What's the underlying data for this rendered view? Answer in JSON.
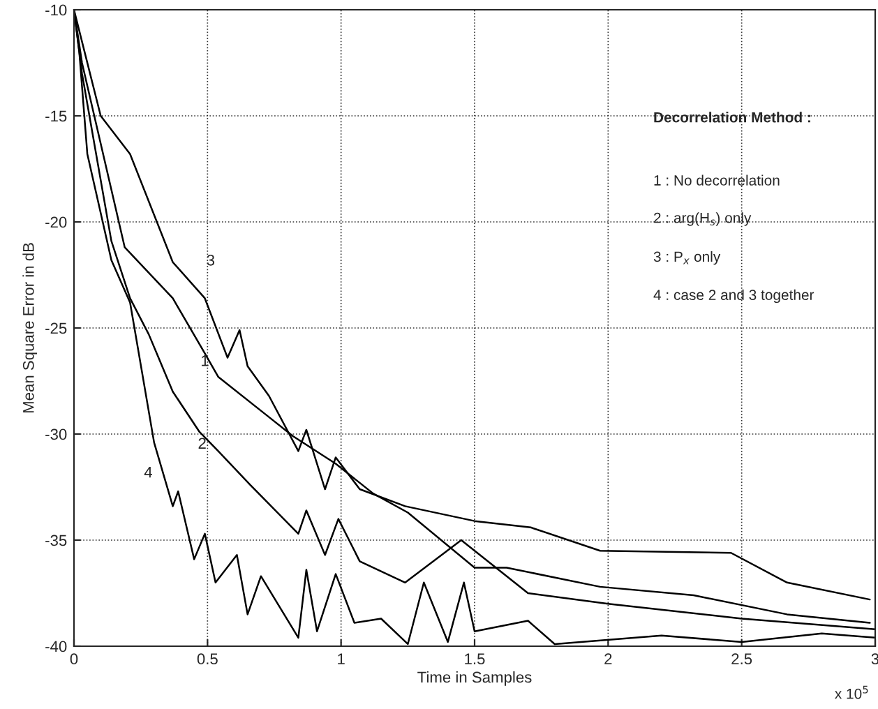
{
  "chart_data": {
    "type": "line",
    "xlabel": "Time in Samples",
    "ylabel": "Mean Square Error in dB",
    "xlim": [
      0,
      3
    ],
    "ylim": [
      -40,
      -10
    ],
    "xticks": [
      0,
      0.5,
      1,
      1.5,
      2,
      2.5,
      3
    ],
    "yticks": [
      -40,
      -35,
      -30,
      -25,
      -20,
      -15,
      -10
    ],
    "grid": true,
    "line_style": "solid",
    "marker": "none",
    "series": [
      {
        "color": "#000000",
        "x": [
          0,
          0.03,
          0.1,
          0.21,
          0.37,
          0.49,
          0.575,
          0.62,
          0.65,
          0.73,
          0.84,
          0.87,
          0.94,
          0.98,
          1.07,
          1.24,
          1.5,
          1.71,
          1.97,
          2.46,
          2.67,
          2.98
        ],
        "values": [
          -10,
          -11.5,
          -15,
          -16.8,
          -21.9,
          -23.6,
          -26.4,
          -25.1,
          -26.8,
          -28.2,
          -30.8,
          -29.8,
          -32.6,
          -31.1,
          -32.6,
          -33.4,
          -34.1,
          -34.4,
          -35.5,
          -35.6,
          -37,
          -37.8
        ]
      },
      {
        "color": "#000000",
        "x": [
          0,
          0.03,
          0.19,
          0.37,
          0.49,
          0.54,
          0.72,
          0.82,
          0.98,
          1.12,
          1.25,
          1.5,
          1.62,
          1.97,
          2.32,
          2.67,
          2.98
        ],
        "values": [
          -10,
          -12.5,
          -21.2,
          -23.6,
          -26.2,
          -27.3,
          -29.1,
          -30.1,
          -31.4,
          -32.8,
          -33.7,
          -36.3,
          -36.3,
          -37.2,
          -37.6,
          -38.5,
          -38.9
        ]
      },
      {
        "color": "#000000",
        "x": [
          0,
          0.03,
          0.14,
          0.21,
          0.28,
          0.37,
          0.47,
          0.54,
          0.66,
          0.84,
          0.87,
          0.94,
          0.99,
          1.07,
          1.24,
          1.45,
          1.7,
          2.0,
          2.5,
          3.0
        ],
        "values": [
          -10,
          -13,
          -20.9,
          -23.6,
          -25.3,
          -28,
          -29.9,
          -30.8,
          -32.4,
          -34.7,
          -33.6,
          -35.7,
          -34,
          -36,
          -37,
          -35,
          -37.5,
          -38,
          -38.7,
          -39.2
        ]
      },
      {
        "color": "#000000",
        "x": [
          0,
          0.02,
          0.05,
          0.14,
          0.21,
          0.3,
          0.37,
          0.39,
          0.45,
          0.49,
          0.53,
          0.61,
          0.65,
          0.7,
          0.84,
          0.87,
          0.91,
          0.98,
          1.05,
          1.15,
          1.25,
          1.31,
          1.4,
          1.46,
          1.5,
          1.7,
          1.8,
          2.2,
          2.5,
          2.8,
          3.0
        ],
        "values": [
          -10,
          -12,
          -16.8,
          -21.8,
          -23.8,
          -30.4,
          -33.4,
          -32.7,
          -35.9,
          -34.7,
          -37,
          -35.7,
          -38.5,
          -36.7,
          -39.6,
          -36.4,
          -39.3,
          -36.6,
          -38.9,
          -38.7,
          -39.9,
          -37,
          -39.8,
          -37,
          -39.3,
          -38.8,
          -39.9,
          -39.5,
          -39.8,
          -39.4,
          -39.6
        ]
      }
    ],
    "annotations": [
      {
        "text": "3",
        "x": 0.49,
        "y": -23.6
      },
      {
        "text": "1",
        "x": 0.49,
        "y": -26.6
      },
      {
        "text": "2",
        "x": 0.48,
        "y": -30.5
      },
      {
        "text": "4",
        "x": 0.3,
        "y": -30.4
      },
      "Decorrelation Method :",
      "1 : No decorrelation",
      "2 : arg(H$_{s}$) only",
      "3 : P$_{x}$ only",
      "4 : case 2 and 3 together",
      "x 10$^{5}$"
    ]
  }
}
